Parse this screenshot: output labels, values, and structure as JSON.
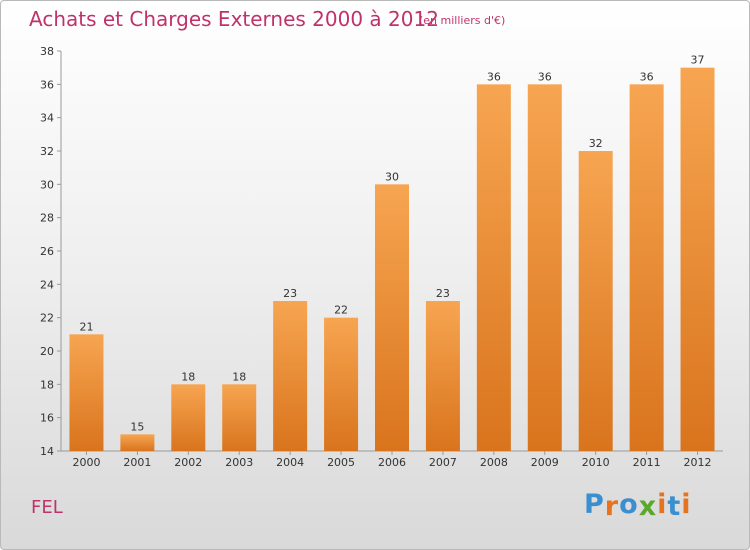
{
  "title": "Achats et Charges Externes 2000 à 2012",
  "subtitle": "(en milliers d'€)",
  "commune": "FEL",
  "logo": {
    "letters": [
      "P",
      "r",
      "o",
      "x",
      "i",
      "t",
      "i"
    ],
    "colors": [
      "#3a8fd0",
      "#e8731f",
      "#3a8fd0",
      "#5aa82c",
      "#e8731f",
      "#3a8fd0",
      "#e8731f"
    ]
  },
  "colors": {
    "bar_light": "#f7a551",
    "bar_dark": "#d9741d",
    "text_accent": "#c0336a"
  },
  "chart_data": {
    "type": "bar",
    "categories": [
      "2000",
      "2001",
      "2002",
      "2003",
      "2004",
      "2005",
      "2006",
      "2007",
      "2008",
      "2009",
      "2010",
      "2011",
      "2012"
    ],
    "values": [
      21,
      15,
      18,
      18,
      23,
      22,
      30,
      23,
      36,
      36,
      32,
      36,
      37
    ],
    "yticks": [
      14,
      16,
      18,
      20,
      22,
      24,
      26,
      28,
      30,
      32,
      34,
      36,
      38
    ],
    "ylim": [
      14,
      38
    ],
    "grid": false
  }
}
